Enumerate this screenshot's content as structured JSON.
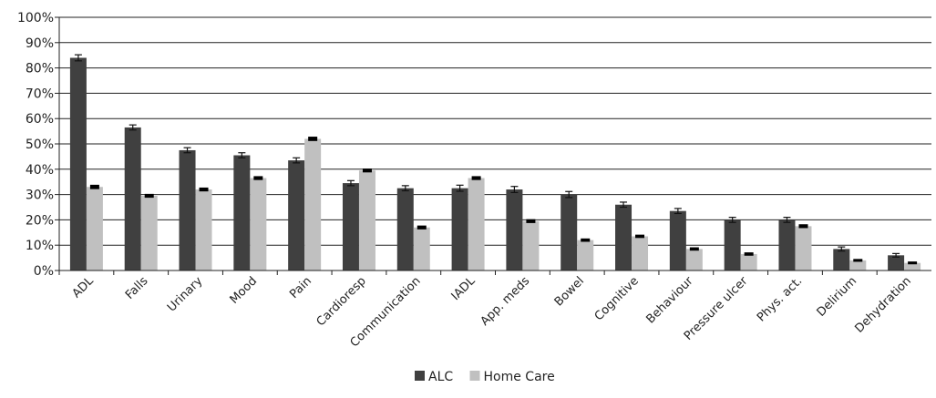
{
  "chart_data": {
    "type": "bar",
    "title": "",
    "xlabel": "",
    "ylabel": "",
    "ylim": [
      0,
      100
    ],
    "yticks": [
      "0%",
      "10%",
      "20%",
      "30%",
      "40%",
      "50%",
      "60%",
      "70%",
      "80%",
      "90%",
      "100%"
    ],
    "grid": "horizontal",
    "legend_position": "bottom",
    "categories": [
      "ADL",
      "Falls",
      "Urinary",
      "Mood",
      "Pain",
      "Cardioresp",
      "Communication",
      "IADL",
      "App. meds",
      "Bowel",
      "Cognitive",
      "Behaviour",
      "Pressure ulcer",
      "Phys. act.",
      "Delirium",
      "Dehydration"
    ],
    "series": [
      {
        "name": "ALC",
        "color": "#404040",
        "values": [
          84,
          56.5,
          47.5,
          45.5,
          43.5,
          34.5,
          32.5,
          32.5,
          32,
          30,
          26,
          23.5,
          20,
          20,
          8.5,
          6
        ],
        "error": [
          1.2,
          1.0,
          1.0,
          1.0,
          1.0,
          1.0,
          1.0,
          1.2,
          1.2,
          1.2,
          1.0,
          1.0,
          1.0,
          1.0,
          0.8,
          0.7
        ]
      },
      {
        "name": "Home Care",
        "color": "#c0c0c0",
        "values": [
          33,
          29.5,
          32,
          36.5,
          52,
          39.5,
          17,
          36.5,
          19.5,
          12,
          13.5,
          8.5,
          6.5,
          17.5,
          4,
          3
        ],
        "error": [
          0.5,
          0.4,
          0.4,
          0.4,
          0.5,
          0.4,
          0.4,
          0.4,
          0.4,
          0.3,
          0.3,
          0.3,
          0.3,
          0.4,
          0.2,
          0.2
        ]
      }
    ]
  }
}
